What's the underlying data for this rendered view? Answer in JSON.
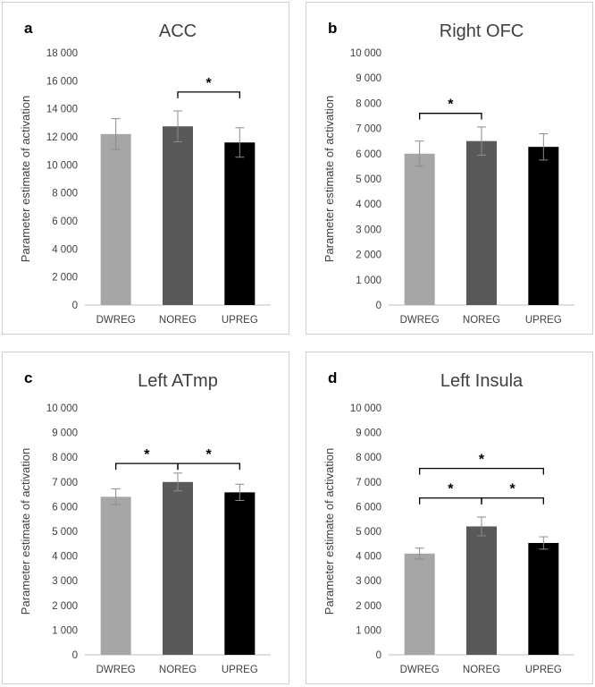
{
  "chart_data": [
    {
      "type": "bar",
      "panel_label": "a",
      "title": "ACC",
      "ylabel": "Parameter estimate of activation",
      "categories": [
        "DWREG",
        "NOREG",
        "UPREG"
      ],
      "values": [
        12200,
        12750,
        11600
      ],
      "errors": [
        1100,
        1100,
        1050
      ],
      "colors": [
        "#a6a6a6",
        "#595959",
        "#000000"
      ],
      "ylim": [
        0,
        18000
      ],
      "yticks": [
        0,
        2000,
        4000,
        6000,
        8000,
        10000,
        12000,
        14000,
        16000,
        18000
      ],
      "ytick_labels": [
        "0",
        "2 000",
        "4 000",
        "6 000",
        "8 000",
        "10 000",
        "12 000",
        "14 000",
        "16 000",
        "18 000"
      ],
      "significance": [
        {
          "from": 1,
          "to": 2,
          "y": 15200,
          "label": "*"
        }
      ]
    },
    {
      "type": "bar",
      "panel_label": "b",
      "title": "Right OFC",
      "ylabel": "Parameter estimate of activation",
      "categories": [
        "DWREG",
        "NOREG",
        "UPREG"
      ],
      "values": [
        6000,
        6500,
        6270
      ],
      "errors": [
        500,
        560,
        520
      ],
      "colors": [
        "#a6a6a6",
        "#595959",
        "#000000"
      ],
      "ylim": [
        0,
        10000
      ],
      "yticks": [
        0,
        1000,
        2000,
        3000,
        4000,
        5000,
        6000,
        7000,
        8000,
        9000,
        10000
      ],
      "ytick_labels": [
        "0",
        "1 000",
        "2 000",
        "3 000",
        "4 000",
        "5 000",
        "6 000",
        "7 000",
        "8 000",
        "9 000",
        "10 000"
      ],
      "significance": [
        {
          "from": 0,
          "to": 1,
          "y": 7600,
          "label": "*"
        }
      ]
    },
    {
      "type": "bar",
      "panel_label": "c",
      "title": "Left ATmp",
      "ylabel": "Parameter estimate of activation",
      "categories": [
        "DWREG",
        "NOREG",
        "UPREG"
      ],
      "values": [
        6400,
        7000,
        6580
      ],
      "errors": [
        320,
        360,
        330
      ],
      "colors": [
        "#a6a6a6",
        "#595959",
        "#000000"
      ],
      "ylim": [
        0,
        10000
      ],
      "yticks": [
        0,
        1000,
        2000,
        3000,
        4000,
        5000,
        6000,
        7000,
        8000,
        9000,
        10000
      ],
      "ytick_labels": [
        "0",
        "1 000",
        "2 000",
        "3 000",
        "4 000",
        "5 000",
        "6 000",
        "7 000",
        "8 000",
        "9 000",
        "10 000"
      ],
      "significance": [
        {
          "from": 0,
          "to": 1,
          "y": 7750,
          "label": "*"
        },
        {
          "from": 1,
          "to": 2,
          "y": 7750,
          "label": "*"
        }
      ]
    },
    {
      "type": "bar",
      "panel_label": "d",
      "title": "Left Insula",
      "ylabel": "Parameter estimate of activation",
      "categories": [
        "DWREG",
        "NOREG",
        "UPREG"
      ],
      "values": [
        4100,
        5200,
        4530
      ],
      "errors": [
        220,
        380,
        250
      ],
      "colors": [
        "#a6a6a6",
        "#595959",
        "#000000"
      ],
      "ylim": [
        0,
        10000
      ],
      "yticks": [
        0,
        1000,
        2000,
        3000,
        4000,
        5000,
        6000,
        7000,
        8000,
        9000,
        10000
      ],
      "ytick_labels": [
        "0",
        "1 000",
        "2 000",
        "3 000",
        "4 000",
        "5 000",
        "6 000",
        "7 000",
        "8 000",
        "9 000",
        "10 000"
      ],
      "significance": [
        {
          "from": 0,
          "to": 1,
          "y": 6350,
          "label": "*"
        },
        {
          "from": 1,
          "to": 2,
          "y": 6350,
          "label": "*"
        },
        {
          "from": 0,
          "to": 2,
          "y": 7550,
          "label": "*"
        }
      ]
    }
  ]
}
